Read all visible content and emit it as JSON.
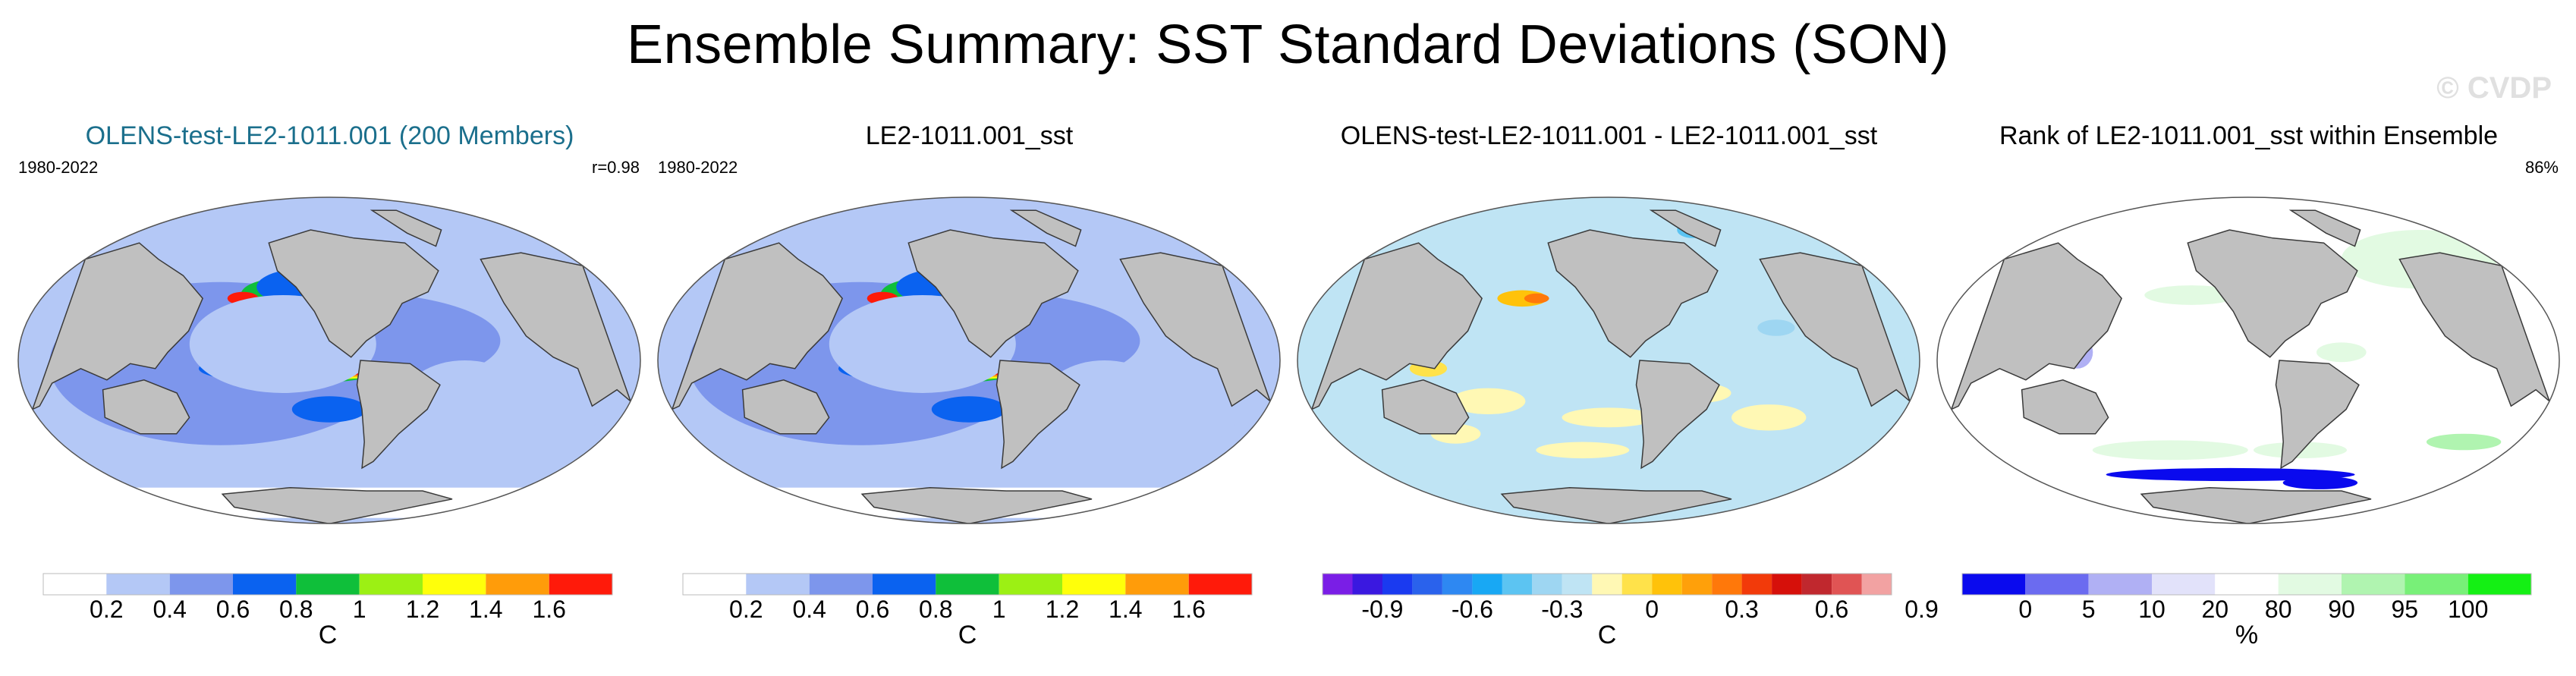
{
  "header": {
    "title": "Ensemble Summary: SST Standard Deviations (SON)",
    "watermark": "© CVDP"
  },
  "chart_data": [
    {
      "type": "heatmap",
      "title": "OLENS-test-LE2-1011.001 (200 Members)",
      "title_color": "#1b6f8c",
      "period": "1980-2022",
      "stat": "r=0.98",
      "field": "seq",
      "colorbar": {
        "colors": [
          "#ffffff",
          "#b4c8f6",
          "#7d96ec",
          "#0a62f0",
          "#0fbf3a",
          "#9cf014",
          "#ffff0a",
          "#ff9c0a",
          "#ff1a0a"
        ],
        "tick_labels": [
          "0.2",
          "0.4",
          "0.6",
          "0.8",
          "1",
          "1.2",
          "1.4",
          "1.6"
        ],
        "unit": "C"
      }
    },
    {
      "type": "heatmap",
      "title": "LE2-1011.001_sst",
      "title_color": "#000000",
      "period": "1980-2022",
      "stat": "",
      "field": "seq",
      "colorbar": {
        "colors": [
          "#ffffff",
          "#b4c8f6",
          "#7d96ec",
          "#0a62f0",
          "#0fbf3a",
          "#9cf014",
          "#ffff0a",
          "#ff9c0a",
          "#ff1a0a"
        ],
        "tick_labels": [
          "0.2",
          "0.4",
          "0.6",
          "0.8",
          "1",
          "1.2",
          "1.4",
          "1.6"
        ],
        "unit": "C"
      }
    },
    {
      "type": "heatmap",
      "title": "OLENS-test-LE2-1011.001 - LE2-1011.001_sst",
      "title_color": "#000000",
      "period": "",
      "stat": "",
      "field": "diff",
      "colorbar": {
        "colors": [
          "#7a1ee6",
          "#3a18e0",
          "#1a3af0",
          "#2a62ec",
          "#2e88f2",
          "#18a8f4",
          "#5cc4f2",
          "#9ed6f2",
          "#bfe4f4",
          "#fff8b4",
          "#ffe24a",
          "#ffc20a",
          "#ffa00a",
          "#ff780a",
          "#f23a0a",
          "#d6100a",
          "#c0282e",
          "#e05454",
          "#f2a2a2"
        ],
        "tick_labels": [
          "-0.9",
          "-0.6",
          "-0.3",
          "0",
          "0.3",
          "0.6",
          "0.9"
        ],
        "unit": "C"
      }
    },
    {
      "type": "heatmap",
      "title": "Rank of LE2-1011.001_sst within Ensemble",
      "title_color": "#000000",
      "period": "",
      "stat": "86%",
      "field": "rank",
      "colorbar": {
        "colors": [
          "#0a0aee",
          "#6b6bf0",
          "#b0b0f4",
          "#e2e2fa",
          "#ffffff",
          "#e2fae2",
          "#b0f4b0",
          "#78f078",
          "#14f014"
        ],
        "tick_labels": [
          "0",
          "5",
          "10",
          "20",
          "80",
          "90",
          "95",
          "100"
        ],
        "unit": "%"
      }
    }
  ]
}
